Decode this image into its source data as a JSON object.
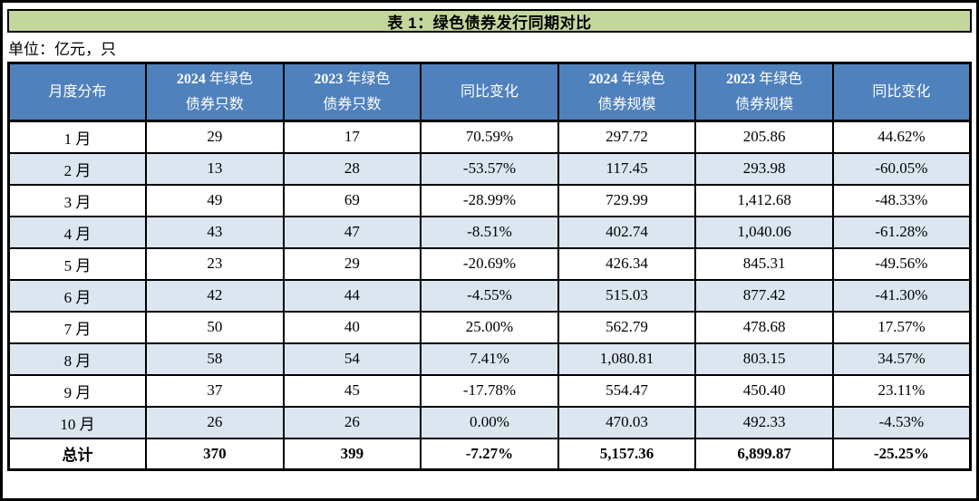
{
  "title": "表 1：绿色债券发行同期对比",
  "unit_note": "单位：亿元，只",
  "colors": {
    "title_bg": "#C3D69B",
    "header_bg": "#4F81BD",
    "row_alt_bg": "#DCE6F1",
    "border": "#000000",
    "header_text": "#FFFFFF"
  },
  "table": {
    "columns": [
      {
        "year": "",
        "line1": "月度分布",
        "line2": ""
      },
      {
        "year": "2024",
        "line1": " 年绿色",
        "line2": "债券只数"
      },
      {
        "year": "2023",
        "line1": " 年绿色",
        "line2": "债券只数"
      },
      {
        "year": "",
        "line1": "同比变化",
        "line2": ""
      },
      {
        "year": "2024",
        "line1": " 年绿色",
        "line2": "债券规模"
      },
      {
        "year": "2023",
        "line1": " 年绿色",
        "line2": "债券规模"
      },
      {
        "year": "",
        "line1": "同比变化",
        "line2": ""
      }
    ],
    "rows": [
      [
        "1 月",
        "29",
        "17",
        "70.59%",
        "297.72",
        "205.86",
        "44.62%"
      ],
      [
        "2 月",
        "13",
        "28",
        "-53.57%",
        "117.45",
        "293.98",
        "-60.05%"
      ],
      [
        "3 月",
        "49",
        "69",
        "-28.99%",
        "729.99",
        "1,412.68",
        "-48.33%"
      ],
      [
        "4 月",
        "43",
        "47",
        "-8.51%",
        "402.74",
        "1,040.06",
        "-61.28%"
      ],
      [
        "5 月",
        "23",
        "29",
        "-20.69%",
        "426.34",
        "845.31",
        "-49.56%"
      ],
      [
        "6 月",
        "42",
        "44",
        "-4.55%",
        "515.03",
        "877.42",
        "-41.30%"
      ],
      [
        "7 月",
        "50",
        "40",
        "25.00%",
        "562.79",
        "478.68",
        "17.57%"
      ],
      [
        "8 月",
        "58",
        "54",
        "7.41%",
        "1,080.81",
        "803.15",
        "34.57%"
      ],
      [
        "9 月",
        "37",
        "45",
        "-17.78%",
        "554.47",
        "450.40",
        "23.11%"
      ],
      [
        "10 月",
        "26",
        "26",
        "0.00%",
        "470.03",
        "492.33",
        "-4.53%"
      ]
    ],
    "total_row": [
      "总计",
      "370",
      "399",
      "-7.27%",
      "5,157.36",
      "6,899.87",
      "-25.25%"
    ]
  }
}
